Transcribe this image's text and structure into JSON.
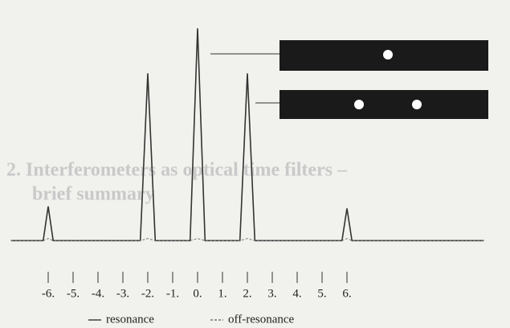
{
  "chart_data": {
    "type": "line",
    "x": [
      -7.5,
      -6.2,
      -6,
      -5.8,
      -2.3,
      -2,
      -1.7,
      -0.3,
      0,
      0.3,
      1.7,
      2,
      2.3,
      5.8,
      6,
      6.2,
      11.5
    ],
    "series": [
      {
        "name": "resonance",
        "color": "#333333",
        "dash": false,
        "values": [
          1,
          1,
          17,
          1,
          1,
          79,
          1,
          1,
          100,
          1,
          1,
          79,
          1,
          1,
          16,
          1,
          1
        ]
      },
      {
        "name": "off-resonance",
        "color": "#777777",
        "dash": true,
        "values": [
          1,
          1,
          2,
          1,
          1,
          2,
          1,
          1,
          2,
          1,
          1,
          2,
          1,
          1,
          2,
          1,
          1
        ]
      }
    ],
    "xlim": [
      -7.6,
      11.7
    ],
    "ylim": [
      0,
      105
    ],
    "xticks": [
      {
        "value": -6,
        "label": "-6."
      },
      {
        "value": -5,
        "label": "-5."
      },
      {
        "value": -4,
        "label": "-4."
      },
      {
        "value": -3,
        "label": "-3."
      },
      {
        "value": -2,
        "label": "-2."
      },
      {
        "value": -1,
        "label": "-1."
      },
      {
        "value": 0,
        "label": "0."
      },
      {
        "value": 1,
        "label": "1."
      },
      {
        "value": 2,
        "label": "2."
      },
      {
        "value": 3,
        "label": "3."
      },
      {
        "value": 4,
        "label": "4."
      },
      {
        "value": 5,
        "label": "5."
      },
      {
        "value": 6,
        "label": "6."
      }
    ],
    "legend": "bottom"
  },
  "background_text": [
    "2. Interferometers as optical time filters –",
    "brief summary"
  ]
}
